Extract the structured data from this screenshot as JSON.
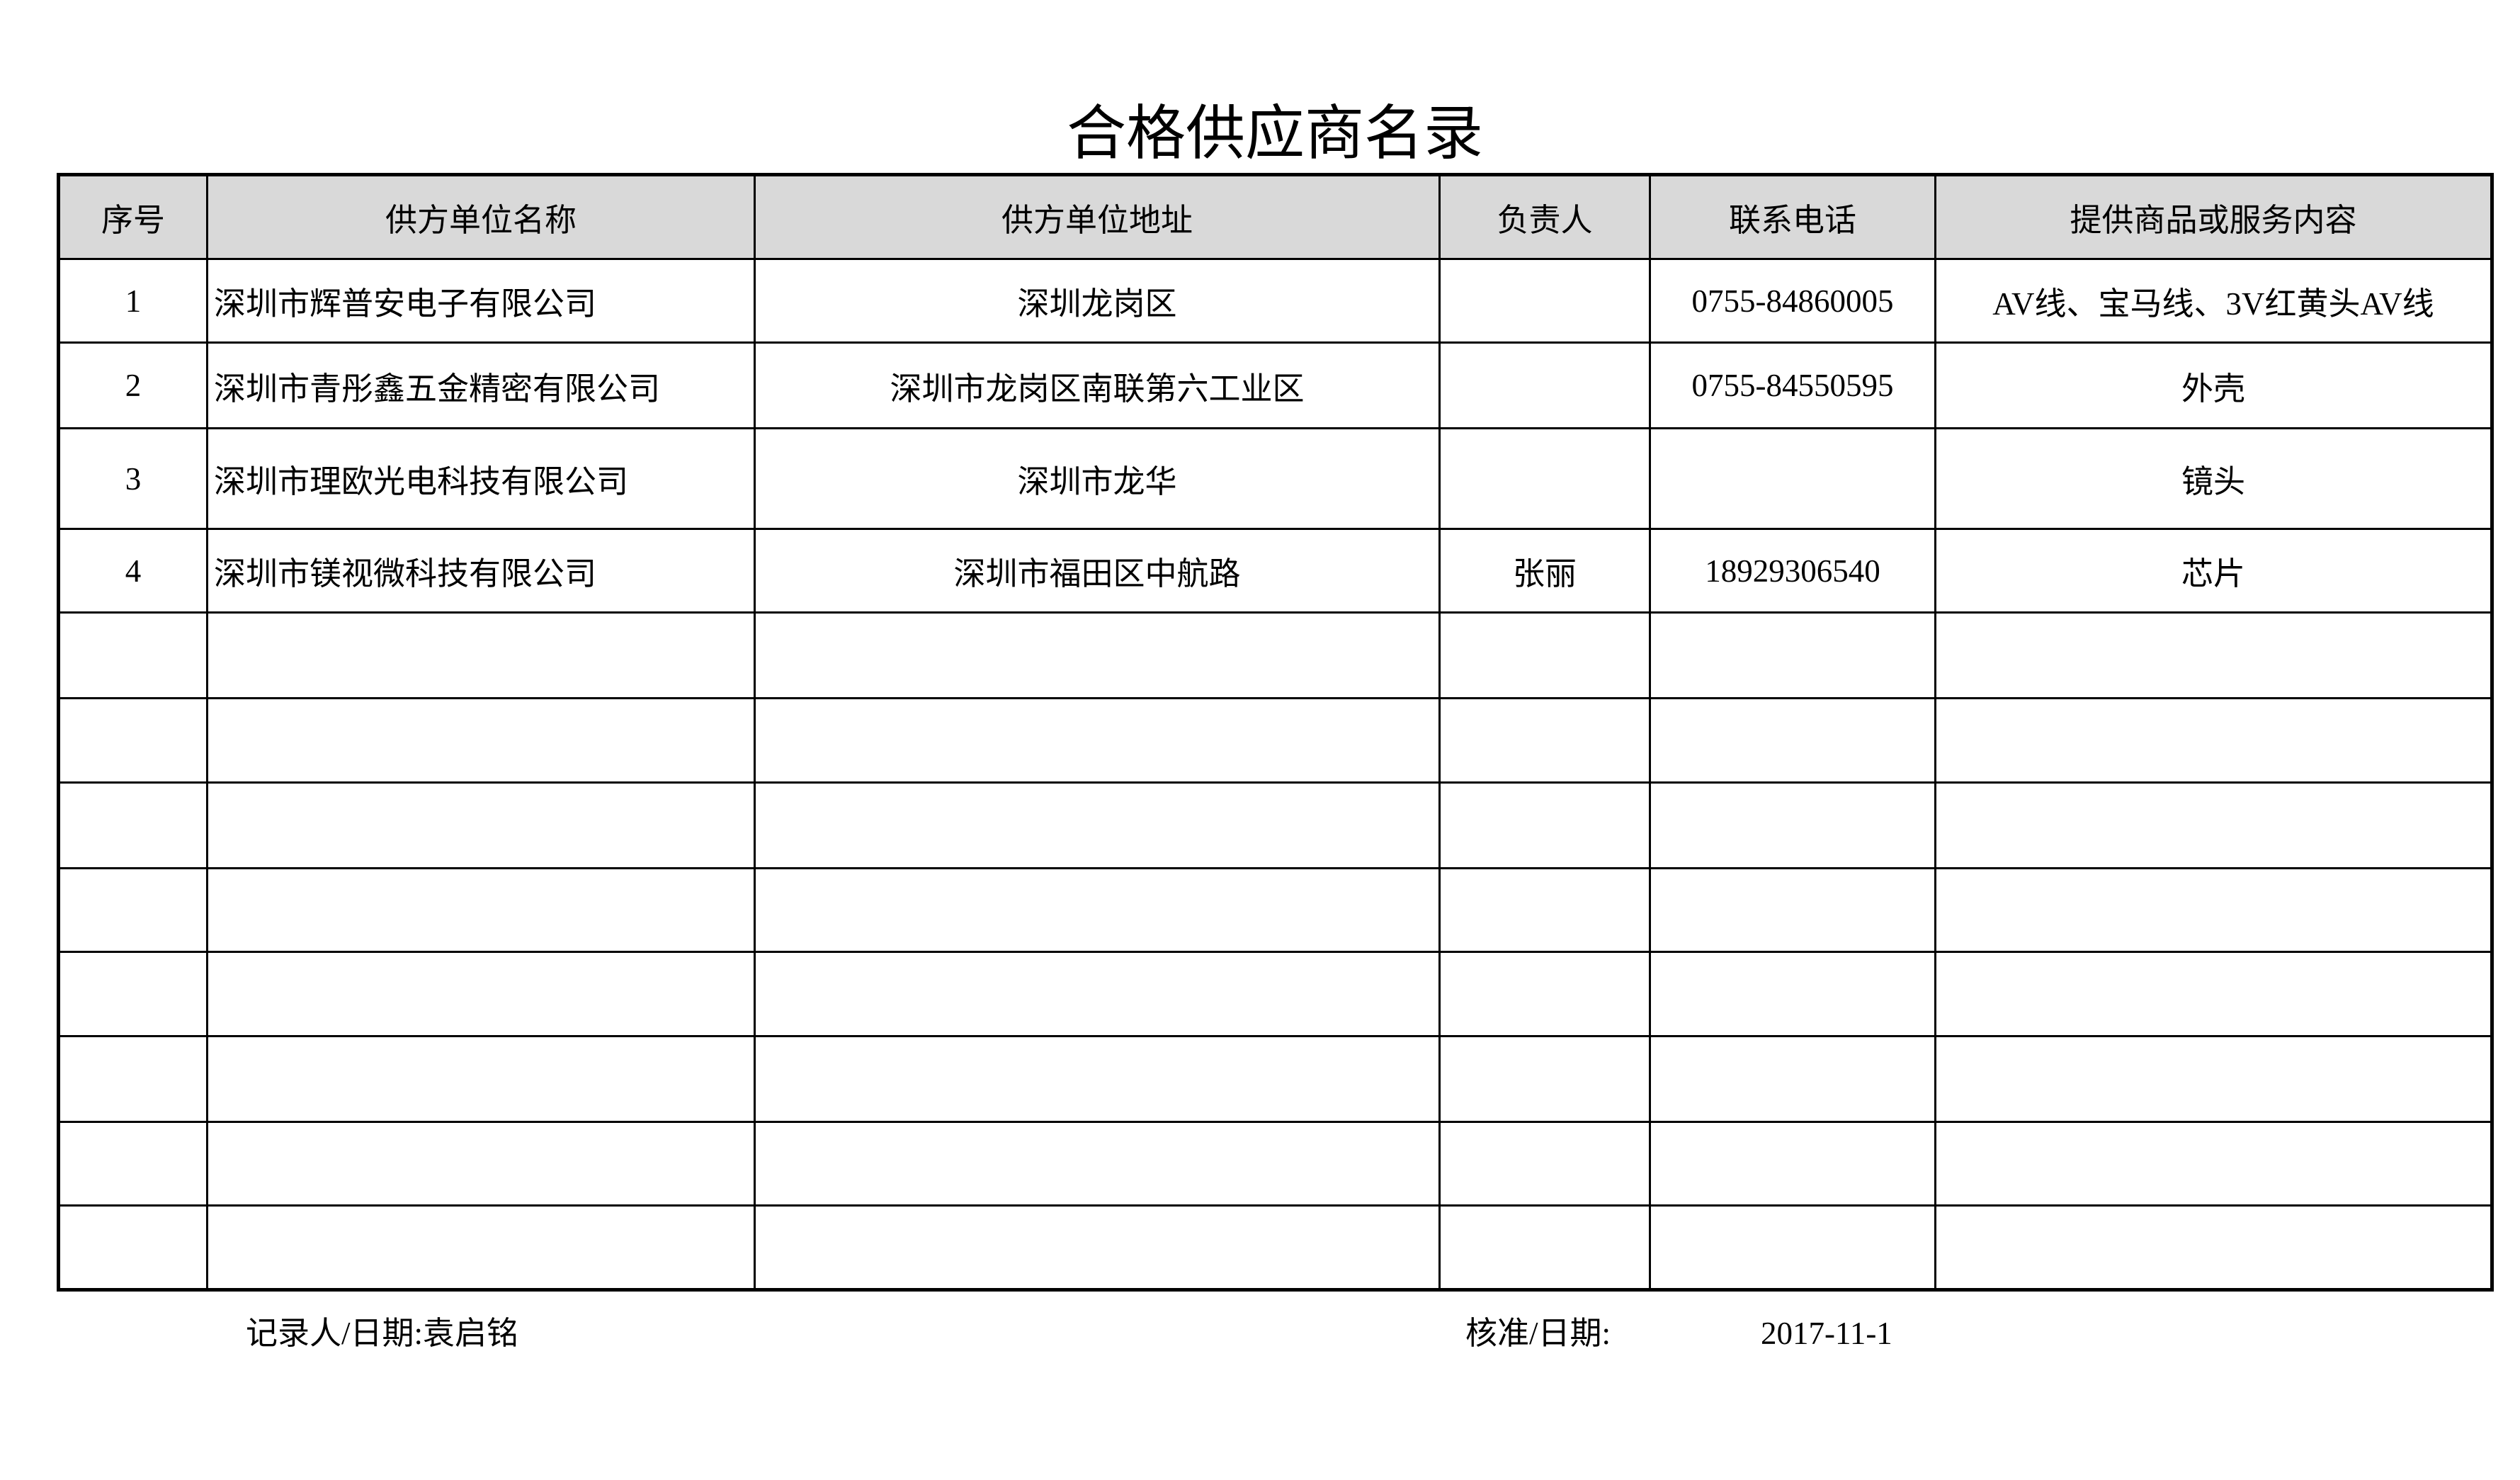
{
  "title": "合格供应商名录",
  "columns": [
    "序号",
    "供方单位名称",
    "供方单位地址",
    "负责人",
    "联系电话",
    "提供商品或服务内容"
  ],
  "rows": [
    [
      "1",
      "深圳市辉普安电子有限公司",
      "深圳龙岗区",
      "",
      "0755-84860005",
      "AV线、宝马线、3V红黄头AV线"
    ],
    [
      "2",
      "深圳市青彤鑫五金精密有限公司",
      "深圳市龙岗区南联第六工业区",
      "",
      "0755-84550595",
      "外壳"
    ],
    [
      "3",
      "深圳市理欧光电科技有限公司",
      "深圳市龙华",
      "",
      "",
      "镜头"
    ],
    [
      "4",
      "深圳市镁视微科技有限公司",
      "深圳市福田区中航路",
      "张丽",
      "18929306540",
      "芯片"
    ],
    [
      "",
      "",
      "",
      "",
      "",
      ""
    ],
    [
      "",
      "",
      "",
      "",
      "",
      ""
    ],
    [
      "",
      "",
      "",
      "",
      "",
      ""
    ],
    [
      "",
      "",
      "",
      "",
      "",
      ""
    ],
    [
      "",
      "",
      "",
      "",
      "",
      ""
    ],
    [
      "",
      "",
      "",
      "",
      "",
      ""
    ],
    [
      "",
      "",
      "",
      "",
      "",
      ""
    ],
    [
      "",
      "",
      "",
      "",
      "",
      ""
    ]
  ],
  "footer": {
    "recorder": "记录人/日期:袁启铭",
    "approver_label": "核准/日期:",
    "date": "2017-11-1"
  },
  "colors": {
    "header_bg": "#d9d9d9",
    "border": "#000000"
  }
}
